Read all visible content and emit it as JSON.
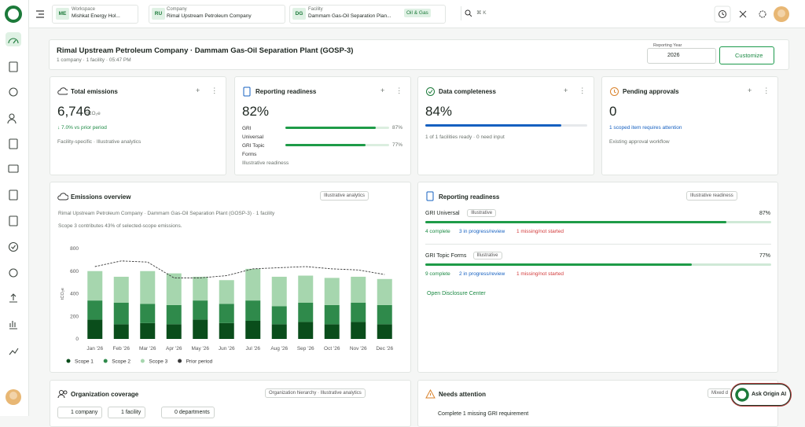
{
  "top_bar": {
    "workspace": {
      "badge": "ME",
      "label": "Workspace",
      "value": "Mishkat Energy Hol..."
    },
    "company": {
      "badge": "RU",
      "label": "Company",
      "value": "Rimal Upstream Petroleum Company"
    },
    "facility": {
      "badge": "DG",
      "label": "Facility",
      "value": "Dammam Gas-Oil Separation Plan...",
      "tag": "Oil & Gas"
    },
    "search_shortcut": "⌘ K"
  },
  "header": {
    "title": "Rimal Upstream Petroleum Company · Dammam Gas-Oil Separation Plant (GOSP-3)",
    "subtitle": "1 company · 1 facility · 05:47 PM",
    "reporting_year_label": "Reporting Year",
    "reporting_year": "2026",
    "customize": "Customize"
  },
  "kpis": [
    {
      "title": "Total emissions",
      "value": "6,746",
      "unit": "tCO₂e",
      "change": "↓ 7.0% vs prior period",
      "note": "Facility-specific · Illustrative analytics"
    },
    {
      "title": "Reporting readiness",
      "value": "82%",
      "bars": [
        {
          "name": "GRI Universal",
          "value": 87,
          "value_label": "87%"
        },
        {
          "name": "GRI Topic Forms",
          "value": 77,
          "value_label": "77%"
        }
      ],
      "note": "Illustrative readiness"
    },
    {
      "title": "Data completeness",
      "value": 84,
      "value_label": "84%",
      "note": "1 of 1 facilities ready · 0 need input"
    },
    {
      "title": "Pending approvals",
      "value": "0",
      "link": "1 scoped item requires attention",
      "note": "Existing approval workflow"
    }
  ],
  "emissions_overview": {
    "title": "Emissions overview",
    "badge": "Illustrative analytics",
    "subtitle": "Rimal Upstream Petroleum Company · Dammam Gas-Oil Separation Plant (GOSP-3) · 1 facility",
    "note": "Scope 3 contributes 43% of selected-scope emissions.",
    "chart": {
      "type": "bar",
      "stacked": true,
      "y_label": "tCO₂e",
      "categories": [
        "Jan '26",
        "Feb '26",
        "Mar '26",
        "Apr '26",
        "May '26",
        "Jun '26",
        "Jul '26",
        "Aug '26",
        "Sep '26",
        "Oct '26",
        "Nov '26",
        "Dec '26"
      ],
      "series": [
        {
          "name": "Scope 1",
          "color": "#0a4d1b",
          "values": [
            170,
            130,
            140,
            130,
            170,
            140,
            160,
            130,
            150,
            130,
            150,
            130
          ]
        },
        {
          "name": "Scope 2",
          "color": "#2f8a4b",
          "values": [
            170,
            190,
            170,
            170,
            170,
            170,
            180,
            160,
            170,
            170,
            170,
            170
          ]
        },
        {
          "name": "Scope 3",
          "color": "#a6d6ae",
          "values": [
            260,
            230,
            290,
            280,
            210,
            210,
            280,
            260,
            240,
            240,
            230,
            230
          ]
        },
        {
          "name": "Prior period",
          "color": "#3a3a3a",
          "type": "line",
          "dashed": true,
          "values": [
            640,
            690,
            680,
            540,
            540,
            560,
            620,
            630,
            640,
            620,
            610,
            570
          ]
        }
      ],
      "ylim": [
        0,
        800
      ],
      "yticks": [
        0,
        200,
        400,
        600,
        800
      ],
      "grid": false
    }
  },
  "reporting_readiness": {
    "title": "Reporting readiness",
    "badge": "Illustrative readiness",
    "frameworks": [
      {
        "name": "GRI Universal",
        "tag": "Illustrative",
        "value": 87,
        "value_label": "87%",
        "complete": "4 complete",
        "in_progress": "3 in progress/review",
        "missing": "1 missing/not started"
      },
      {
        "name": "GRI Topic Forms",
        "tag": "Illustrative",
        "value": 77,
        "value_label": "77%",
        "complete": "9 complete",
        "in_progress": "2 in progress/review",
        "missing": "1 missing/not started"
      }
    ],
    "link": "Open Disclosure Center"
  },
  "organization_coverage": {
    "title": "Organization coverage",
    "badge": "Organization hierarchy · Illustrative analytics",
    "chips": [
      "1 company",
      "1 facility",
      "0 departments"
    ]
  },
  "needs_attention": {
    "title": "Needs attention",
    "badge": "Mixed d",
    "items": [
      "Complete 1 missing GRI requirement"
    ]
  },
  "assistant": "Ask Origin AI"
}
